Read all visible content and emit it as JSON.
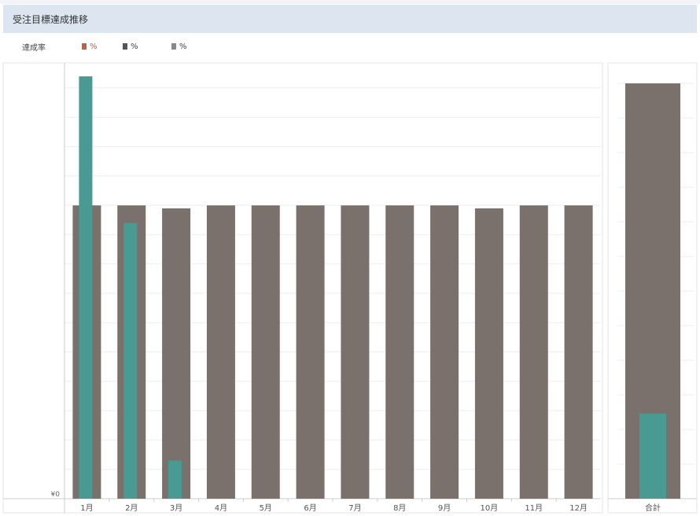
{
  "header": {
    "title": "受注目標達成推移"
  },
  "legend": {
    "label": "達成率",
    "items": [
      {
        "text": "%",
        "color": "#b5654e"
      },
      {
        "text": "%",
        "color": "#555555"
      },
      {
        "text": "%",
        "color": "#888888"
      }
    ]
  },
  "colors": {
    "target": "#7a706c",
    "actual": "#4a9a94",
    "grid": "#eeeeee",
    "axis": "#cccccc"
  },
  "chart_data": [
    {
      "type": "bar",
      "categories": [
        "1月",
        "2月",
        "3月",
        "4月",
        "5月",
        "6月",
        "7月",
        "8月",
        "9月",
        "10月",
        "11月",
        "12月"
      ],
      "series": [
        {
          "values": [
            100,
            100,
            99,
            100,
            100,
            100,
            100,
            100,
            100,
            99,
            100,
            100
          ]
        },
        {
          "values": [
            144,
            94,
            13,
            0,
            0,
            0,
            0,
            0,
            0,
            0,
            0,
            0
          ]
        }
      ],
      "y_tick_labels": [
        "¥0"
      ],
      "ylim": [
        0,
        140
      ],
      "grid": true
    },
    {
      "type": "bar",
      "categories": [
        "合計"
      ],
      "series": [
        {
          "values": [
            100
          ]
        },
        {
          "values": [
            20.5
          ]
        }
      ],
      "ylim": [
        0,
        100
      ],
      "grid": true
    }
  ]
}
